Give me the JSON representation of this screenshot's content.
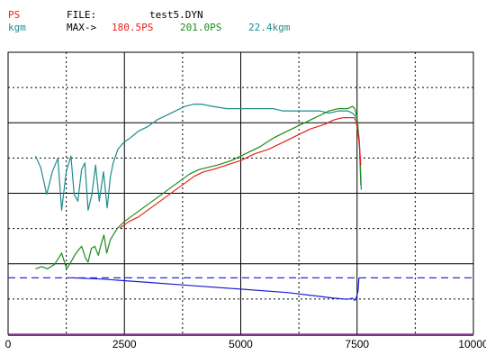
{
  "header": {
    "unit_power": "PS",
    "unit_torque": "kgm",
    "file_label": "FILE:",
    "file_name": "test5.DYN",
    "max_label": "MAX->",
    "max_ps_red": "180.5PS",
    "max_ps_green": "201.0PS",
    "max_torque": "22.4kgm"
  },
  "colors": {
    "red": "#e8201c",
    "green": "#1c8a1c",
    "teal": "#1f8c8c",
    "blue": "#1e1ed2",
    "dash": "#2a2ae0",
    "grid": "#000000",
    "axis_bottom": "#8a2a9a"
  },
  "chart_data": {
    "type": "line",
    "x_ticks": [
      "0",
      "2500",
      "5000",
      "7500",
      "10000"
    ],
    "xlim": [
      0,
      10000
    ],
    "ylim": [
      0,
      1
    ],
    "grid": true,
    "series": [
      {
        "color": "teal",
        "x": [
          590,
          700,
          830,
          950,
          1070,
          1150,
          1250,
          1350,
          1420,
          1500,
          1580,
          1650,
          1720,
          1800,
          1880,
          1960,
          2050,
          2130,
          2200,
          2260,
          2360,
          2480,
          2620,
          2800,
          3000,
          3200,
          3400,
          3600,
          3800,
          4000,
          4150,
          4400,
          4700,
          5000,
          5300,
          5500,
          5700,
          5900,
          6100,
          6300,
          6500,
          6700,
          6900,
          7100,
          7300,
          7400,
          7450,
          7500,
          7550,
          7570,
          7590
        ],
        "y": [
          0.79,
          0.74,
          0.62,
          0.72,
          0.78,
          0.55,
          0.72,
          0.79,
          0.62,
          0.59,
          0.73,
          0.76,
          0.55,
          0.62,
          0.75,
          0.59,
          0.72,
          0.56,
          0.7,
          0.76,
          0.82,
          0.85,
          0.87,
          0.9,
          0.92,
          0.95,
          0.97,
          0.99,
          1.01,
          1.02,
          1.02,
          1.01,
          1.0,
          1.0,
          1.0,
          1.0,
          1.0,
          0.99,
          0.99,
          0.99,
          0.99,
          0.99,
          0.98,
          0.99,
          0.99,
          0.98,
          0.97,
          0.95,
          0.85,
          0.75,
          0.64
        ]
      },
      {
        "color": "green",
        "x": [
          590,
          720,
          850,
          1000,
          1150,
          1260,
          1350,
          1430,
          1500,
          1580,
          1660,
          1720,
          1790,
          1860,
          1940,
          2000,
          2060,
          2120,
          2200,
          2260,
          2350,
          2500,
          2700,
          2900,
          3100,
          3300,
          3500,
          3700,
          3900,
          4100,
          4300,
          4500,
          4800,
          5100,
          5400,
          5700,
          6000,
          6300,
          6600,
          6900,
          7100,
          7300,
          7400,
          7450,
          7500,
          7550,
          7580
        ],
        "y": [
          0.29,
          0.3,
          0.29,
          0.31,
          0.36,
          0.29,
          0.32,
          0.35,
          0.37,
          0.39,
          0.34,
          0.32,
          0.38,
          0.39,
          0.35,
          0.4,
          0.44,
          0.36,
          0.42,
          0.44,
          0.47,
          0.5,
          0.53,
          0.56,
          0.59,
          0.62,
          0.65,
          0.68,
          0.71,
          0.73,
          0.74,
          0.75,
          0.77,
          0.8,
          0.83,
          0.87,
          0.9,
          0.93,
          0.96,
          0.99,
          1.0,
          1.0,
          1.01,
          1.0,
          0.96,
          0.85,
          0.66
        ]
      },
      {
        "color": "red",
        "x": [
          2400,
          2600,
          2800,
          3000,
          3200,
          3400,
          3600,
          3800,
          4000,
          4200,
          4400,
          4700,
          5000,
          5300,
          5600,
          5900,
          6200,
          6500,
          6800,
          7000,
          7200,
          7350,
          7430,
          7470,
          7510,
          7550,
          7580
        ],
        "y": [
          0.47,
          0.5,
          0.52,
          0.55,
          0.58,
          0.61,
          0.64,
          0.67,
          0.7,
          0.72,
          0.73,
          0.75,
          0.77,
          0.8,
          0.82,
          0.85,
          0.88,
          0.91,
          0.93,
          0.95,
          0.96,
          0.96,
          0.96,
          0.95,
          0.91,
          0.84,
          0.75
        ]
      },
      {
        "color": "blue",
        "x": [
          1400,
          2000,
          3000,
          4000,
          5000,
          6000,
          6600,
          7000,
          7300,
          7400,
          7450,
          7480,
          7520,
          7540
        ],
        "y": [
          0.25,
          0.245,
          0.23,
          0.215,
          0.2,
          0.185,
          0.17,
          0.16,
          0.155,
          0.16,
          0.15,
          0.16,
          0.19,
          0.25
        ]
      }
    ],
    "reference_line": {
      "color": "dash",
      "y": 0.25
    }
  }
}
